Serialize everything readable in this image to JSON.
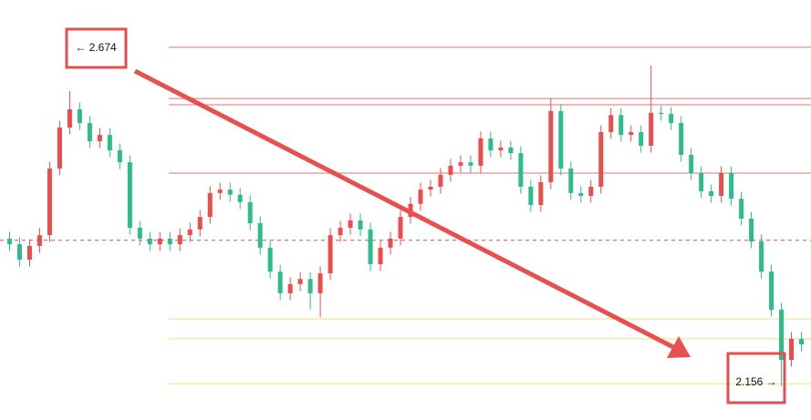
{
  "chart_data": {
    "type": "candlestick",
    "up_color": "#eb4d4d",
    "down_color": "#2dbd8b",
    "ylim": [
      2.0964,
      2.834
    ],
    "open": [
      2.415,
      2.405,
      2.378,
      2.402,
      2.421,
      2.538,
      2.61,
      2.642,
      2.618,
      2.586,
      2.597,
      2.57,
      2.549,
      2.434,
      2.415,
      2.405,
      2.415,
      2.405,
      2.421,
      2.431,
      2.453,
      2.495,
      2.501,
      2.492,
      2.479,
      2.442,
      2.399,
      2.357,
      2.319,
      2.335,
      2.344,
      2.319,
      2.354,
      2.421,
      2.434,
      2.447,
      2.431,
      2.37,
      2.399,
      2.415,
      2.453,
      2.476,
      2.501,
      2.506,
      2.527,
      2.543,
      2.549,
      2.543,
      2.591,
      2.57,
      2.575,
      2.565,
      2.506,
      2.474,
      2.514,
      2.639,
      2.538,
      2.495,
      2.49,
      2.506,
      2.602,
      2.632,
      2.597,
      2.602,
      2.578,
      2.636,
      2.634,
      2.618,
      2.562,
      2.53,
      2.498,
      2.49,
      2.53,
      2.485,
      2.45,
      2.41,
      2.357,
      2.29,
      2.202,
      2.239
    ],
    "high": [
      2.427,
      2.417,
      2.414,
      2.433,
      2.55,
      2.622,
      2.674,
      2.654,
      2.63,
      2.609,
      2.609,
      2.582,
      2.561,
      2.446,
      2.427,
      2.427,
      2.427,
      2.433,
      2.443,
      2.465,
      2.507,
      2.513,
      2.513,
      2.504,
      2.491,
      2.454,
      2.411,
      2.369,
      2.347,
      2.356,
      2.356,
      2.366,
      2.433,
      2.446,
      2.459,
      2.459,
      2.443,
      2.411,
      2.427,
      2.465,
      2.488,
      2.513,
      2.518,
      2.539,
      2.555,
      2.561,
      2.561,
      2.603,
      2.603,
      2.587,
      2.587,
      2.577,
      2.518,
      2.526,
      2.661,
      2.651,
      2.55,
      2.507,
      2.518,
      2.614,
      2.644,
      2.644,
      2.614,
      2.614,
      2.719,
      2.648,
      2.646,
      2.63,
      2.574,
      2.542,
      2.51,
      2.542,
      2.542,
      2.497,
      2.462,
      2.422,
      2.369,
      2.302,
      2.251,
      2.251
    ],
    "low": [
      2.393,
      2.366,
      2.366,
      2.39,
      2.409,
      2.526,
      2.598,
      2.606,
      2.574,
      2.574,
      2.558,
      2.537,
      2.422,
      2.403,
      2.393,
      2.393,
      2.393,
      2.393,
      2.409,
      2.419,
      2.441,
      2.483,
      2.48,
      2.467,
      2.43,
      2.387,
      2.345,
      2.307,
      2.307,
      2.323,
      2.29,
      2.277,
      2.342,
      2.409,
      2.422,
      2.419,
      2.358,
      2.358,
      2.387,
      2.403,
      2.441,
      2.464,
      2.489,
      2.494,
      2.515,
      2.531,
      2.531,
      2.531,
      2.558,
      2.558,
      2.553,
      2.494,
      2.462,
      2.462,
      2.502,
      2.526,
      2.483,
      2.478,
      2.478,
      2.494,
      2.59,
      2.585,
      2.585,
      2.566,
      2.566,
      2.622,
      2.606,
      2.55,
      2.518,
      2.486,
      2.478,
      2.478,
      2.473,
      2.438,
      2.398,
      2.345,
      2.278,
      2.156,
      2.19,
      2.217
    ],
    "close": [
      2.405,
      2.378,
      2.402,
      2.421,
      2.538,
      2.61,
      2.642,
      2.618,
      2.586,
      2.597,
      2.57,
      2.549,
      2.434,
      2.415,
      2.405,
      2.415,
      2.405,
      2.421,
      2.431,
      2.453,
      2.495,
      2.501,
      2.492,
      2.479,
      2.442,
      2.399,
      2.357,
      2.319,
      2.335,
      2.344,
      2.319,
      2.354,
      2.421,
      2.434,
      2.447,
      2.431,
      2.37,
      2.399,
      2.415,
      2.453,
      2.476,
      2.501,
      2.506,
      2.527,
      2.543,
      2.549,
      2.543,
      2.591,
      2.57,
      2.575,
      2.565,
      2.506,
      2.474,
      2.514,
      2.639,
      2.538,
      2.495,
      2.49,
      2.506,
      2.602,
      2.632,
      2.597,
      2.602,
      2.578,
      2.636,
      2.634,
      2.618,
      2.562,
      2.53,
      2.498,
      2.49,
      2.53,
      2.485,
      2.45,
      2.41,
      2.357,
      2.29,
      2.202,
      2.239,
      2.229
    ],
    "levels": [
      {
        "value": 2.751,
        "color": "#e87070",
        "style": "solid"
      },
      {
        "value": 2.661,
        "color": "#e87070",
        "style": "solid"
      },
      {
        "value": 2.65,
        "color": "#e87070",
        "style": "solid"
      },
      {
        "value": 2.53,
        "color": "#e87070",
        "style": "solid"
      },
      {
        "value": 2.412,
        "color": "#d05050",
        "style": "dashed"
      },
      {
        "value": 2.274,
        "color": "#efe27a",
        "style": "solid"
      },
      {
        "value": 2.239,
        "color": "#efe27a",
        "style": "solid"
      },
      {
        "value": 2.16,
        "color": "#efe27a",
        "style": "solid"
      }
    ],
    "annotations": [
      {
        "value": 2.674,
        "label": "← 2.674"
      },
      {
        "value": 2.156,
        "label": "2.156 →"
      }
    ]
  }
}
